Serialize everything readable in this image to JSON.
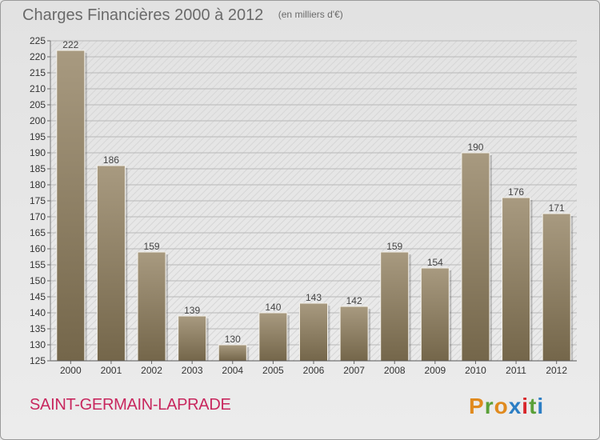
{
  "header": {
    "title": "Charges Financières 2000 à 2012",
    "subtitle": "(en milliers d'€)"
  },
  "footer": {
    "place": "SAINT-GERMAIN-LAPRADE",
    "logo_text": "Proxiti"
  },
  "colors": {
    "background": "#e6e6e6",
    "bar_top": "#a89a80",
    "bar_bottom": "#74664a",
    "place_text": "#c8275e",
    "logo_letters": [
      "#e08a1e",
      "#5aa038",
      "#e08a1e",
      "#2c7ec4",
      "#d8262a",
      "#5aa038",
      "#2c7ec4"
    ]
  },
  "chart_data": {
    "type": "bar",
    "categories": [
      "2000",
      "2001",
      "2002",
      "2003",
      "2004",
      "2005",
      "2006",
      "2007",
      "2008",
      "2009",
      "2010",
      "2011",
      "2012"
    ],
    "values": [
      222,
      186,
      159,
      139,
      130,
      140,
      143,
      142,
      159,
      154,
      190,
      176,
      171
    ],
    "ylim": [
      125,
      225
    ],
    "yticks": [
      125,
      130,
      135,
      140,
      145,
      150,
      155,
      160,
      165,
      170,
      175,
      180,
      185,
      190,
      195,
      200,
      205,
      210,
      215,
      220,
      225
    ],
    "grid": true,
    "legend": "none"
  }
}
